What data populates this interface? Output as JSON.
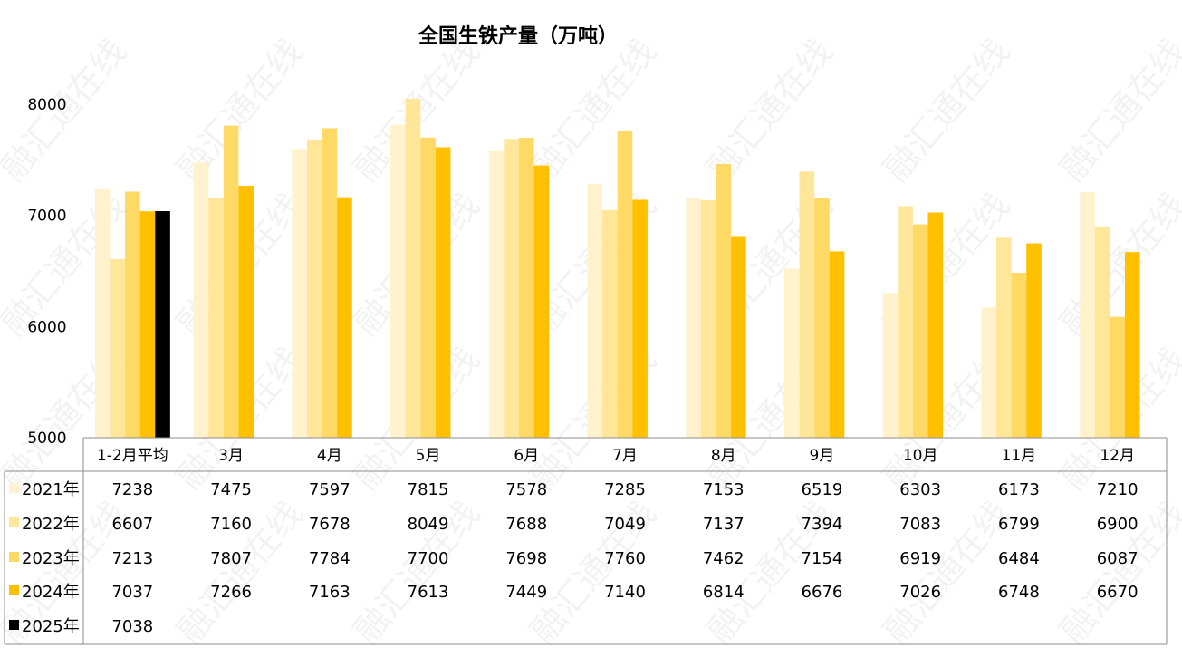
{
  "chart_data": {
    "type": "bar",
    "title": "全国生铁产量（万吨）",
    "xlabel": "",
    "ylabel": "",
    "ylim": [
      5000,
      8000
    ],
    "yticks": [
      5000,
      6000,
      7000,
      8000
    ],
    "grid": false,
    "legend": "data-table-left",
    "categories": [
      "1-2月平均",
      "3月",
      "4月",
      "5月",
      "6月",
      "7月",
      "8月",
      "9月",
      "10月",
      "11月",
      "12月"
    ],
    "series": [
      {
        "name": "2021年",
        "color": "#FFF2CC",
        "values": [
          7238,
          7475,
          7597,
          7815,
          7578,
          7285,
          7153,
          6519,
          6303,
          6173,
          7210
        ]
      },
      {
        "name": "2022年",
        "color": "#FFE699",
        "values": [
          6607,
          7160,
          7678,
          8049,
          7688,
          7049,
          7137,
          7394,
          7083,
          6799,
          6900
        ]
      },
      {
        "name": "2023年",
        "color": "#FFD966",
        "values": [
          7213,
          7807,
          7784,
          7700,
          7698,
          7760,
          7462,
          7154,
          6919,
          6484,
          6087
        ]
      },
      {
        "name": "2024年",
        "color": "#FFC000",
        "values": [
          7037,
          7266,
          7163,
          7613,
          7449,
          7140,
          6814,
          6676,
          7026,
          6748,
          6670
        ]
      },
      {
        "name": "2025年",
        "color": "#000000",
        "values": [
          7038,
          null,
          null,
          null,
          null,
          null,
          null,
          null,
          null,
          null,
          null
        ]
      }
    ]
  }
}
